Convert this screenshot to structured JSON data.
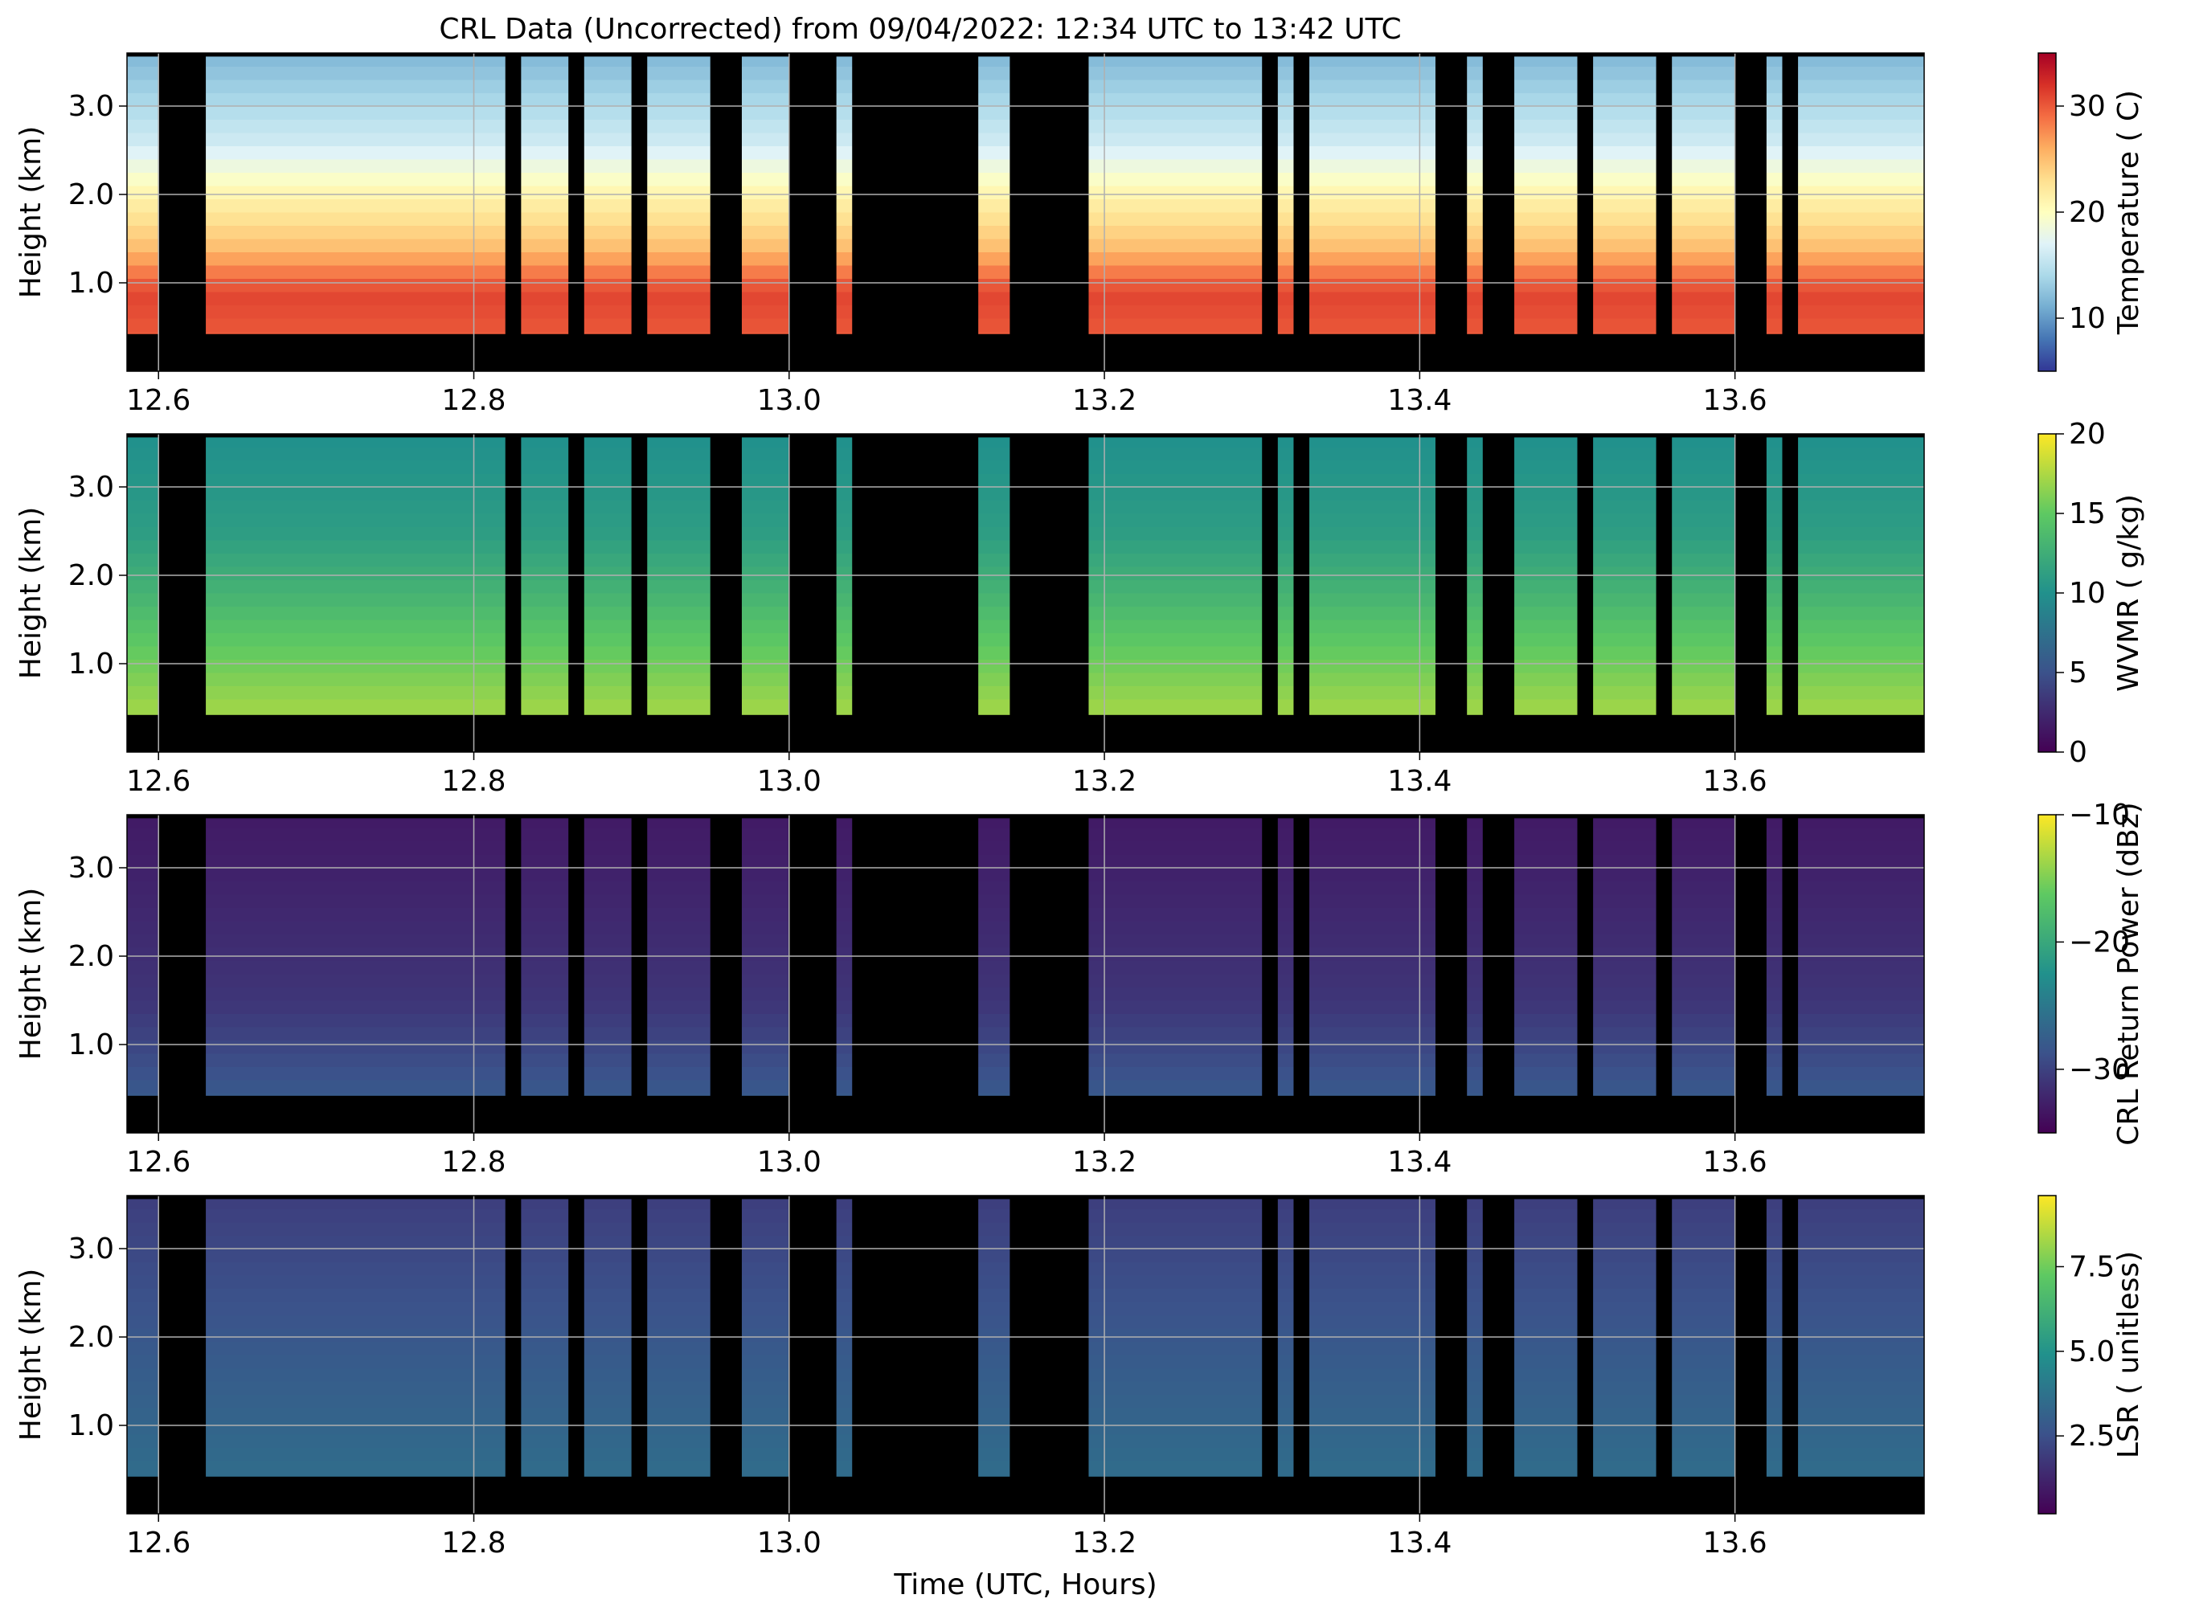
{
  "figure": {
    "title": "CRL Data (Uncorrected) from 09/04/2022: 12:34 UTC to 13:42 UTC",
    "xlabel": "Time (UTC, Hours)"
  },
  "chart_data": [
    {
      "type": "heatmap",
      "ylabel": "Height (km)",
      "colorbar_label": "Temperature ( C)",
      "colormap": "RdYlBu_r",
      "xlim": [
        12.58,
        13.72
      ],
      "ylim": [
        0.0,
        3.6
      ],
      "x_ticks": [
        "12.6",
        "12.8",
        "13.0",
        "13.2",
        "13.4",
        "13.6"
      ],
      "y_ticks": [
        "1.0",
        "2.0",
        "3.0"
      ],
      "clim": [
        5,
        35
      ],
      "colorbar_ticks": [
        "10",
        "20",
        "30"
      ],
      "grid": true,
      "profile": [
        {
          "h": 0.4,
          "v": 30
        },
        {
          "h": 0.9,
          "v": 31
        },
        {
          "h": 1.4,
          "v": 25
        },
        {
          "h": 2.0,
          "v": 21
        },
        {
          "h": 2.6,
          "v": 16
        },
        {
          "h": 3.5,
          "v": 12
        }
      ]
    },
    {
      "type": "heatmap",
      "ylabel": "Height (km)",
      "colorbar_label": "WVMR ( g/kg)",
      "colormap": "viridis",
      "xlim": [
        12.58,
        13.72
      ],
      "ylim": [
        0.0,
        3.6
      ],
      "x_ticks": [
        "12.6",
        "12.8",
        "13.0",
        "13.2",
        "13.4",
        "13.6"
      ],
      "y_ticks": [
        "1.0",
        "2.0",
        "3.0"
      ],
      "clim": [
        0,
        20
      ],
      "colorbar_ticks": [
        "0",
        "5",
        "10",
        "15",
        "20"
      ],
      "grid": true,
      "profile": [
        {
          "h": 0.5,
          "v": 17
        },
        {
          "h": 1.2,
          "v": 15
        },
        {
          "h": 1.8,
          "v": 13
        },
        {
          "h": 2.5,
          "v": 11
        },
        {
          "h": 3.5,
          "v": 10
        }
      ]
    },
    {
      "type": "heatmap",
      "ylabel": "Height (km)",
      "colorbar_label": "CRL Return Power (dBz)",
      "colormap": "viridis",
      "xlim": [
        12.58,
        13.72
      ],
      "ylim": [
        0.0,
        3.6
      ],
      "x_ticks": [
        "12.6",
        "12.8",
        "13.0",
        "13.2",
        "13.4",
        "13.6"
      ],
      "y_ticks": [
        "1.0",
        "2.0",
        "3.0"
      ],
      "clim": [
        -35,
        -10
      ],
      "colorbar_ticks": [
        "−10",
        "−20",
        "−30"
      ],
      "grid": true,
      "profile": [
        {
          "h": 0.4,
          "v": -28
        },
        {
          "h": 1.5,
          "v": -31
        },
        {
          "h": 2.5,
          "v": -32
        },
        {
          "h": 3.5,
          "v": -33
        }
      ]
    },
    {
      "type": "heatmap",
      "ylabel": "Height (km)",
      "colorbar_label": "LSR ( unitless)",
      "colormap": "viridis",
      "xlim": [
        12.58,
        13.72
      ],
      "ylim": [
        0.0,
        3.6
      ],
      "x_ticks": [
        "12.6",
        "12.8",
        "13.0",
        "13.2",
        "13.4",
        "13.6"
      ],
      "y_ticks": [
        "1.0",
        "2.0",
        "3.0"
      ],
      "clim": [
        0.2,
        9.6
      ],
      "colorbar_ticks": [
        "2.5",
        "5.0",
        "7.5"
      ],
      "grid": true,
      "profile": [
        {
          "h": 0.5,
          "v": 3.5
        },
        {
          "h": 1.5,
          "v": 3.0
        },
        {
          "h": 2.5,
          "v": 2.5
        },
        {
          "h": 3.5,
          "v": 2.0
        }
      ]
    }
  ],
  "colors": {
    "masked": "#000000",
    "grid": "#b0b0b0"
  },
  "gaps": [
    [
      12.6,
      12.63
    ],
    [
      12.82,
      12.83
    ],
    [
      12.86,
      12.87
    ],
    [
      12.9,
      12.91
    ],
    [
      12.95,
      12.97
    ],
    [
      13.0,
      13.03
    ],
    [
      13.04,
      13.12
    ],
    [
      13.14,
      13.19
    ],
    [
      13.3,
      13.31
    ],
    [
      13.32,
      13.33
    ],
    [
      13.41,
      13.43
    ],
    [
      13.44,
      13.46
    ],
    [
      13.5,
      13.51
    ],
    [
      13.55,
      13.56
    ],
    [
      13.6,
      13.62
    ],
    [
      13.63,
      13.64
    ]
  ]
}
